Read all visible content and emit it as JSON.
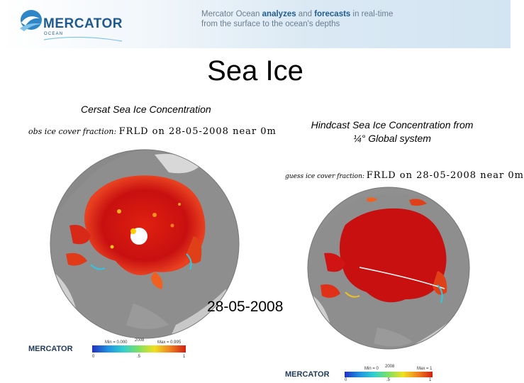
{
  "header": {
    "logo_text": "MERCATOR",
    "logo_subtext": "OCEAN",
    "tagline_part1": "Mercator Ocean ",
    "tagline_bold1": "analyzes",
    "tagline_part2": " and ",
    "tagline_bold2": "forecasts",
    "tagline_part3": " in real-time",
    "tagline_line2": "from the surface to the ocean's depths"
  },
  "slide": {
    "title": "Sea Ice",
    "left_caption": "Cersat Sea Ice Concentration",
    "right_caption": "Hindcast Sea Ice Concentration from ¼° Global system",
    "date_label": "28-05-2008"
  },
  "left_map": {
    "plot_title_prefix": "obs ice cover fraction:",
    "plot_title_main": "FRLD on 28-05-2008 near 0m",
    "colorbar_min": "Min = 0.000",
    "colorbar_max": "Max = 0.995",
    "colorbar_mid": "2008",
    "tick0": "0",
    "tick_mid": ".5",
    "tick1": "1",
    "logo": "MERCATOR"
  },
  "right_map": {
    "plot_title_prefix": "guess ice cover fraction:",
    "plot_title_main": "FRLD on 28-05-2008 near 0m",
    "colorbar_min": "Min = 0",
    "colorbar_max": "Max = 1",
    "colorbar_mid": "2008",
    "tick0": "0",
    "tick_mid": ".5",
    "tick1": "1",
    "logo": "MERCATOR"
  },
  "colors": {
    "ocean": "#8e8e8e",
    "land": "#d0d0d0",
    "ice_high": "#c81010",
    "ice_mid": "#f05a1e",
    "ice_low": "#f0c020",
    "edge": "#30c8e0",
    "brand": "#1e5a8f"
  }
}
